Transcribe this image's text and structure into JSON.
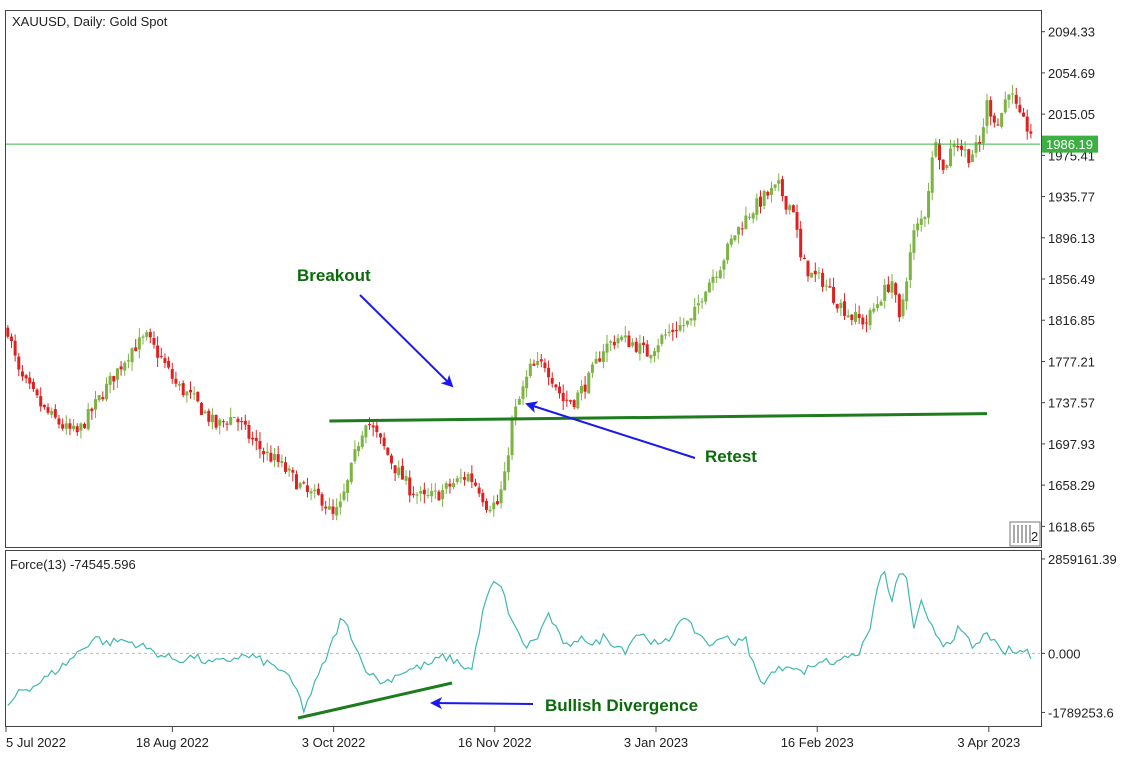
{
  "chart_data": [
    {
      "type": "candlestick",
      "title": "XAUUSD, Daily:  Gold Spot",
      "colors": {
        "up": "#7cb342",
        "down": "#e02020",
        "current_price_line": "#3cb043",
        "trendline": "#1e7b1e",
        "arrow": "#1a1aee"
      },
      "ylim": [
        1598.8,
        2114.2
      ],
      "y_ticks": [
        "2094.33",
        "2054.69",
        "2015.05",
        "1975.41",
        "1935.77",
        "1896.13",
        "1856.49",
        "1816.85",
        "1777.21",
        "1737.57",
        "1697.93",
        "1658.29",
        "1618.65"
      ],
      "x_ticks": [
        "5 Jul 2022",
        "18 Aug 2022",
        "3 Oct 2022",
        "16 Nov 2022",
        "3 Jan 2023",
        "16 Feb 2023",
        "3 Apr 2023"
      ],
      "current_price": 1986.19,
      "current_price_label": "1986.19",
      "close_path": [
        [
          0,
          1808
        ],
        [
          3,
          1765
        ],
        [
          10,
          1730
        ],
        [
          16,
          1712
        ],
        [
          19,
          1708
        ],
        [
          23,
          1730
        ],
        [
          28,
          1758
        ],
        [
          34,
          1790
        ],
        [
          38,
          1800
        ],
        [
          42,
          1780
        ],
        [
          46,
          1755
        ],
        [
          51,
          1740
        ],
        [
          57,
          1715
        ],
        [
          62,
          1725
        ],
        [
          66,
          1705
        ],
        [
          70,
          1690
        ],
        [
          74,
          1680
        ],
        [
          78,
          1665
        ],
        [
          82,
          1650
        ],
        [
          86,
          1645
        ],
        [
          89,
          1628
        ],
        [
          91,
          1638
        ],
        [
          93,
          1660
        ],
        [
          96,
          1700
        ],
        [
          98,
          1722
        ],
        [
          102,
          1700
        ],
        [
          106,
          1675
        ],
        [
          110,
          1655
        ],
        [
          114,
          1645
        ],
        [
          118,
          1650
        ],
        [
          122,
          1660
        ],
        [
          126,
          1668
        ],
        [
          129,
          1655
        ],
        [
          131,
          1640
        ],
        [
          134,
          1640
        ],
        [
          136,
          1665
        ],
        [
          138,
          1720
        ],
        [
          141,
          1750
        ],
        [
          143,
          1770
        ],
        [
          147,
          1775
        ],
        [
          150,
          1755
        ],
        [
          152,
          1740
        ],
        [
          155,
          1740
        ],
        [
          159,
          1760
        ],
        [
          163,
          1790
        ],
        [
          167,
          1800
        ],
        [
          171,
          1795
        ],
        [
          175,
          1785
        ],
        [
          179,
          1800
        ],
        [
          183,
          1810
        ],
        [
          187,
          1815
        ],
        [
          191,
          1850
        ],
        [
          195,
          1870
        ],
        [
          199,
          1900
        ],
        [
          203,
          1920
        ],
        [
          207,
          1935
        ],
        [
          211,
          1945
        ],
        [
          213,
          1930
        ],
        [
          215,
          1925
        ],
        [
          217,
          1875
        ],
        [
          220,
          1860
        ],
        [
          223,
          1855
        ],
        [
          227,
          1835
        ],
        [
          231,
          1820
        ],
        [
          235,
          1815
        ],
        [
          239,
          1840
        ],
        [
          242,
          1855
        ],
        [
          244,
          1815
        ],
        [
          246,
          1860
        ],
        [
          248,
          1900
        ],
        [
          251,
          1920
        ],
        [
          254,
          1995
        ],
        [
          256,
          1960
        ],
        [
          259,
          1990
        ],
        [
          263,
          1975
        ],
        [
          266,
          1985
        ],
        [
          268,
          2025
        ],
        [
          271,
          2005
        ],
        [
          274,
          2040
        ],
        [
          277,
          2010
        ],
        [
          280,
          1998
        ]
      ],
      "annotations": [
        {
          "text": "Breakout"
        },
        {
          "text": "Retest"
        }
      ]
    },
    {
      "type": "line",
      "title": "Force(13) -74545.596",
      "color": "#3fb8b0",
      "ylim": [
        -2200000,
        3100000
      ],
      "y_ticks": [
        "2859161.39",
        "0.000",
        "-1789253.6"
      ],
      "zero_line_color": "#bbbbbb",
      "path": [
        [
          0,
          -1700000
        ],
        [
          3,
          -1100000
        ],
        [
          7,
          -1000000
        ],
        [
          11,
          -700000
        ],
        [
          16,
          -300000
        ],
        [
          21,
          200000
        ],
        [
          24,
          500000
        ],
        [
          27,
          300000
        ],
        [
          31,
          400000
        ],
        [
          35,
          300000
        ],
        [
          39,
          100000
        ],
        [
          43,
          -100000
        ],
        [
          47,
          -200000
        ],
        [
          51,
          -100000
        ],
        [
          55,
          -300000
        ],
        [
          59,
          -250000
        ],
        [
          63,
          -100000
        ],
        [
          67,
          -100000
        ],
        [
          71,
          -300000
        ],
        [
          75,
          -500000
        ],
        [
          79,
          -1100000
        ],
        [
          81,
          -1700000
        ],
        [
          83,
          -1200000
        ],
        [
          85,
          -700000
        ],
        [
          88,
          100000
        ],
        [
          91,
          1000000
        ],
        [
          93,
          800000
        ],
        [
          95,
          300000
        ],
        [
          97,
          -300000
        ],
        [
          100,
          -700000
        ],
        [
          103,
          -900000
        ],
        [
          107,
          -600000
        ],
        [
          110,
          -500000
        ],
        [
          113,
          -400000
        ],
        [
          116,
          -300000
        ],
        [
          119,
          -100000
        ],
        [
          122,
          -200000
        ],
        [
          125,
          -400000
        ],
        [
          127,
          -500000
        ],
        [
          129,
          700000
        ],
        [
          131,
          1700000
        ],
        [
          133,
          2100000
        ],
        [
          135,
          2000000
        ],
        [
          137,
          1300000
        ],
        [
          139,
          700000
        ],
        [
          142,
          200000
        ],
        [
          145,
          500000
        ],
        [
          148,
          1200000
        ],
        [
          151,
          500000
        ],
        [
          154,
          100000
        ],
        [
          157,
          600000
        ],
        [
          160,
          200000
        ],
        [
          163,
          500000
        ],
        [
          166,
          300000
        ],
        [
          169,
          100000
        ],
        [
          172,
          600000
        ],
        [
          175,
          500000
        ],
        [
          178,
          200000
        ],
        [
          181,
          400000
        ],
        [
          184,
          1100000
        ],
        [
          187,
          800000
        ],
        [
          190,
          500000
        ],
        [
          193,
          200000
        ],
        [
          196,
          600000
        ],
        [
          199,
          300000
        ],
        [
          202,
          400000
        ],
        [
          204,
          -300000
        ],
        [
          206,
          -900000
        ],
        [
          208,
          -700000
        ],
        [
          211,
          -500000
        ],
        [
          214,
          -300000
        ],
        [
          217,
          -600000
        ],
        [
          220,
          -400000
        ],
        [
          223,
          -200000
        ],
        [
          226,
          -300000
        ],
        [
          229,
          0
        ],
        [
          232,
          -200000
        ],
        [
          234,
          300000
        ],
        [
          236,
          700000
        ],
        [
          238,
          2100000
        ],
        [
          240,
          2400000
        ],
        [
          242,
          1500000
        ],
        [
          244,
          2500000
        ],
        [
          246,
          2200000
        ],
        [
          248,
          800000
        ],
        [
          250,
          1500000
        ],
        [
          252,
          900000
        ],
        [
          254,
          600000
        ],
        [
          256,
          300000
        ],
        [
          258,
          400000
        ],
        [
          260,
          700000
        ],
        [
          262,
          500000
        ],
        [
          264,
          200000
        ],
        [
          266,
          300000
        ],
        [
          268,
          700000
        ],
        [
          270,
          300000
        ],
        [
          272,
          0
        ],
        [
          274,
          100000
        ],
        [
          276,
          0
        ],
        [
          278,
          100000
        ],
        [
          280,
          -100000
        ]
      ],
      "annotations": [
        {
          "text": "Bullish Divergence"
        }
      ]
    }
  ],
  "seed": 7
}
